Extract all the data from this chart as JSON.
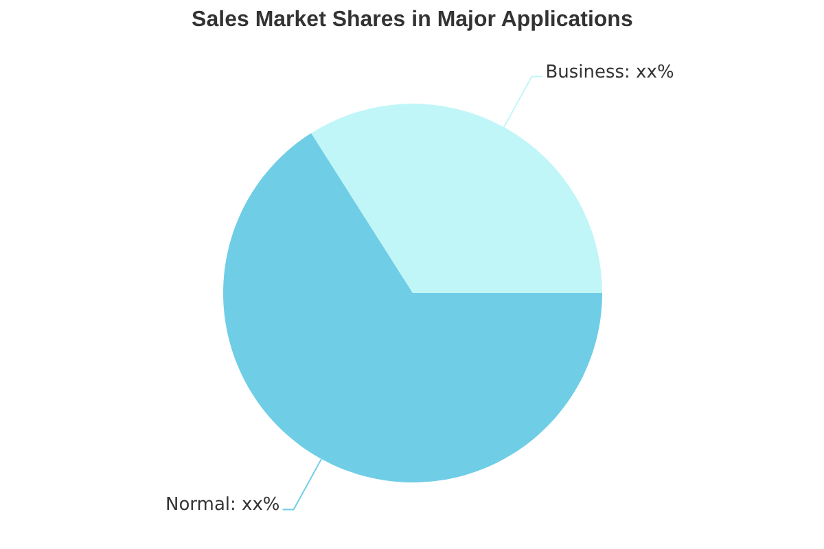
{
  "chart_data": {
    "type": "pie",
    "title": "Sales Market Shares in Major Applications",
    "categories": [
      "Business",
      "Normal"
    ],
    "values": [
      34,
      66
    ],
    "colors": [
      "#c1f6f8",
      "#6fcde6"
    ],
    "value_labels": [
      "xx%",
      "xx%"
    ]
  }
}
